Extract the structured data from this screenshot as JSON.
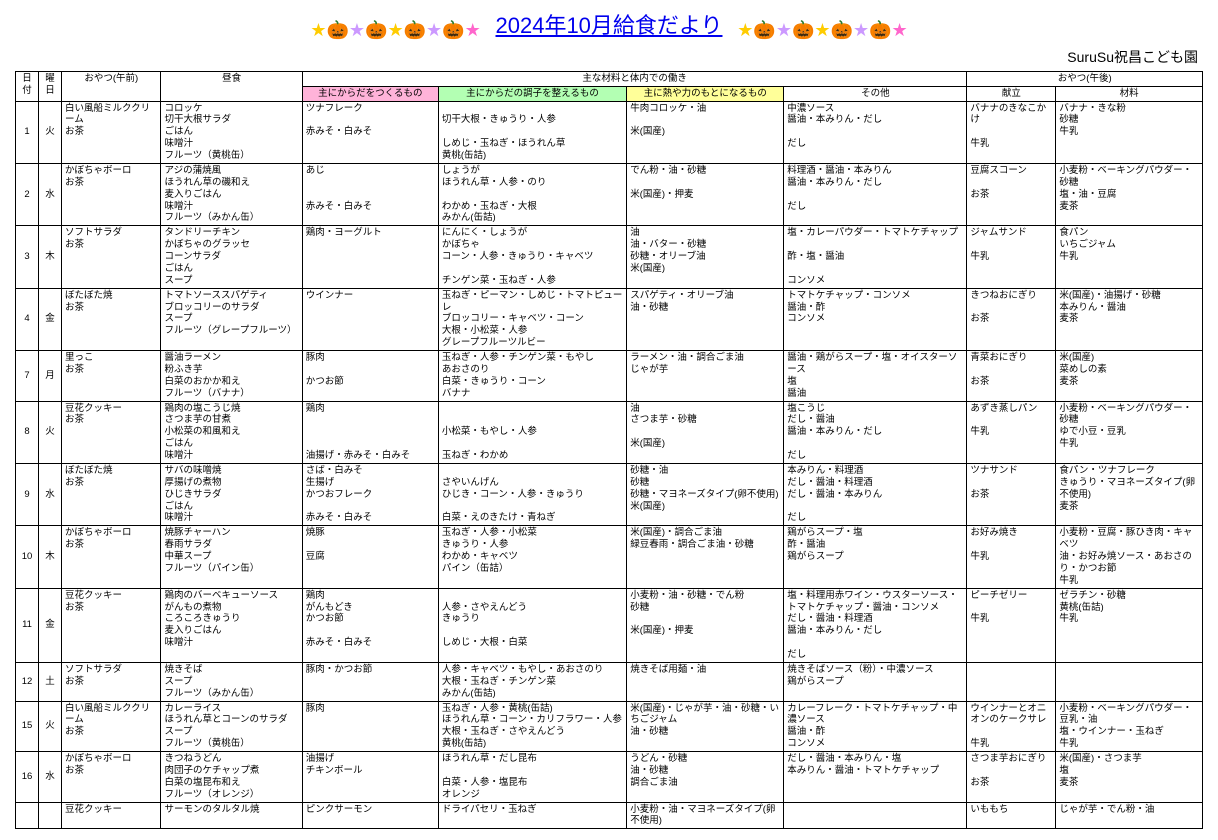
{
  "title": "2024年10月給食だより",
  "school_name": "SuruSu祝昌こども園",
  "icons": {
    "left": [
      {
        "cls": "star",
        "ch": "★"
      },
      {
        "cls": "pump-t",
        "ch": "🎃"
      },
      {
        "cls": "star-lav",
        "ch": "★"
      },
      {
        "cls": "pump-p",
        "ch": "🎃"
      },
      {
        "cls": "star",
        "ch": "★"
      },
      {
        "cls": "pump-o",
        "ch": "🎃"
      },
      {
        "cls": "star-lav",
        "ch": "★"
      },
      {
        "cls": "pump-o",
        "ch": "🎃"
      },
      {
        "cls": "star-pink",
        "ch": "★"
      }
    ],
    "right": [
      {
        "cls": "star",
        "ch": "★"
      },
      {
        "cls": "pump-g",
        "ch": "🎃"
      },
      {
        "cls": "star-lav",
        "ch": "★"
      },
      {
        "cls": "pump-p",
        "ch": "🎃"
      },
      {
        "cls": "star",
        "ch": "★"
      },
      {
        "cls": "pump-o",
        "ch": "🎃"
      },
      {
        "cls": "star-lav",
        "ch": "★"
      },
      {
        "cls": "pump-t",
        "ch": "🎃"
      },
      {
        "cls": "star-pink",
        "ch": "★"
      }
    ]
  },
  "headers": {
    "date": "日付",
    "day": "曜日",
    "snack_am": "おやつ(午前)",
    "lunch": "昼食",
    "main_group": "主な材料と体内での働き",
    "body": "主にからだをつくるもの",
    "condition": "主にからだの調子を整えるもの",
    "heat": "主に熱や力のもとになるもの",
    "other": "その他",
    "snack_pm_group": "おやつ(午後)",
    "menu": "献立",
    "material": "材料"
  },
  "rows": [
    {
      "date": "1",
      "day": "火",
      "snack_am": "白い風船ミルククリーム\nお茶",
      "lunch": "コロッケ\n切干大根サラダ\nごはん\n味噌汁\nフルーツ（黄桃缶）",
      "body": "ツナフレーク\n\n赤みそ・白みそ",
      "cond": "\n切干大根・きゅうり・人参\n\nしめじ・玉ねぎ・ほうれん草\n黄桃(缶詰)",
      "heat": "牛肉コロッケ・油\n\n米(国産)",
      "other": "中濃ソース\n醤油・本みりん・だし\n\nだし",
      "menu": "バナナのきなこかけ\n\n牛乳",
      "mat": "バナナ・きな粉\n砂糖\n牛乳"
    },
    {
      "date": "2",
      "day": "水",
      "snack_am": "かぼちゃボーロ\nお茶",
      "lunch": "アジの蒲焼風\nほうれん草の磯和え\n麦入りごはん\n味噌汁\nフルーツ（みかん缶）",
      "body": "あじ\n\n\n赤みそ・白みそ",
      "cond": "しょうが\nほうれん草・人参・のり\n\nわかめ・玉ねぎ・大根\nみかん(缶詰)",
      "heat": "でん粉・油・砂糖\n\n米(国産)・押麦",
      "other": "料理酒・醤油・本みりん\n醤油・本みりん・だし\n\nだし",
      "menu": "豆腐スコーン\n\nお茶",
      "mat": "小麦粉・ベーキングパウダー・砂糖\n塩・油・豆腐\n麦茶"
    },
    {
      "date": "3",
      "day": "木",
      "snack_am": "ソフトサラダ\nお茶",
      "lunch": "タンドリーチキン\nかぼちゃのグラッセ\nコーンサラダ\nごはん\nスープ",
      "body": "鶏肉・ヨーグルト",
      "cond": "にんにく・しょうが\nかぼちゃ\nコーン・人参・きゅうり・キャベツ\n\nチンゲン菜・玉ねぎ・人参",
      "heat": "油\n油・バター・砂糖\n砂糖・オリーブ油\n米(国産)",
      "other": "塩・カレーパウダー・トマトケチャップ\n\n酢・塩・醤油\n\nコンソメ",
      "menu": "ジャムサンド\n\n牛乳",
      "mat": "食パン\nいちごジャム\n牛乳"
    },
    {
      "date": "4",
      "day": "金",
      "snack_am": "ぼたぼた焼\nお茶",
      "lunch": "トマトソーススパゲティ\nブロッコリーのサラダ\nスープ\nフルーツ（グレープフルーツ）",
      "body": "ウインナー",
      "cond": "玉ねぎ・ピーマン・しめじ・トマトピューレ\nブロッコリー・キャベツ・コーン\n大根・小松菜・人参\nグレープフルーツルビー",
      "heat": "スパゲティ・オリーブ油\n油・砂糖",
      "other": "トマトケチャップ・コンソメ\n醤油・酢\nコンソメ",
      "menu": "きつねおにぎり\n\nお茶",
      "mat": "米(国産)・油揚げ・砂糖\n本みりん・醤油\n麦茶"
    },
    {
      "date": "7",
      "day": "月",
      "snack_am": "里っこ\nお茶",
      "lunch": "醤油ラーメン\n粉ふき芋\n白菜のおかか和え\nフルーツ（バナナ）",
      "body": "豚肉\n\nかつお節",
      "cond": "玉ねぎ・人参・チンゲン菜・もやし\nあおさのり\n白菜・きゅうり・コーン\nバナナ",
      "heat": "ラーメン・油・調合ごま油\nじゃが芋",
      "other": "醤油・鶏がらスープ・塩・オイスターソース\n塩\n醤油",
      "menu": "青菜おにぎり\n\nお茶",
      "mat": "米(国産)\n菜めしの素\n麦茶"
    },
    {
      "date": "8",
      "day": "火",
      "snack_am": "豆花クッキー\nお茶",
      "lunch": "鶏肉の塩こうじ焼\nさつま芋の甘煮\n小松菜の和風和え\nごはん\n味噌汁",
      "body": "鶏肉\n\n\n\n油揚げ・赤みそ・白みそ",
      "cond": "\n\n小松菜・もやし・人参\n\n玉ねぎ・わかめ",
      "heat": "油\nさつま芋・砂糖\n\n米(国産)",
      "other": "塩こうじ\nだし・醤油\n醤油・本みりん・だし\n\nだし",
      "menu": "あずき蒸しパン\n\n牛乳",
      "mat": "小麦粉・ベーキングパウダー・砂糖\nゆで小豆・豆乳\n牛乳"
    },
    {
      "date": "9",
      "day": "水",
      "snack_am": "ぼたぼた焼\nお茶",
      "lunch": "サバの味噌焼\n厚揚げの煮物\nひじきサラダ\nごはん\n味噌汁",
      "body": "さば・白みそ\n生揚げ\nかつおフレーク\n\n赤みそ・白みそ",
      "cond": "\nさやいんげん\nひじき・コーン・人参・きゅうり\n\n白菜・えのきたけ・青ねぎ",
      "heat": "砂糖・油\n砂糖\n砂糖・マヨネーズタイプ(卵不使用)\n米(国産)",
      "other": "本みりん・料理酒\nだし・醤油・料理酒\nだし・醤油・本みりん\n\nだし",
      "menu": "ツナサンド\n\nお茶",
      "mat": "食パン・ツナフレーク\nきゅうり・マヨネーズタイプ(卵不使用)\n麦茶"
    },
    {
      "date": "10",
      "day": "木",
      "snack_am": "かぼちゃボーロ\nお茶",
      "lunch": "焼豚チャーハン\n春雨サラダ\n中華スープ\nフルーツ（パイン缶）",
      "body": "焼豚\n\n豆腐",
      "cond": "玉ねぎ・人参・小松菜\nきゅうり・人参\nわかめ・キャベツ\nパイン（缶詰）",
      "heat": "米(国産)・調合ごま油\n緑豆春雨・調合ごま油・砂糖",
      "other": "鶏がらスープ・塩\n酢・醤油\n鶏がらスープ",
      "menu": "お好み焼き\n\n牛乳",
      "mat": "小麦粉・豆腐・豚ひき肉・キャベツ\n油・お好み焼ソース・あおさのり・かつお節\n牛乳"
    },
    {
      "date": "11",
      "day": "金",
      "snack_am": "豆花クッキー\nお茶",
      "lunch": "鶏肉のバーベキューソース\nがんもの煮物\nころころきゅうり\n麦入りごはん\n味噌汁",
      "body": "鶏肉\nがんもどき\nかつお節\n\n赤みそ・白みそ",
      "cond": "\n人参・さやえんどう\nきゅうり\n\nしめじ・大根・白菜",
      "heat": "小麦粉・油・砂糖・でん粉\n砂糖\n\n米(国産)・押麦",
      "other": "塩・料理用赤ワイン・ウスターソース・トマトケチャップ・醤油・コンソメ\nだし・醤油・料理酒\n醤油・本みりん・だし\n\nだし",
      "menu": "ピーチゼリー\n\n牛乳",
      "mat": "ゼラチン・砂糖\n黄桃(缶詰)\n牛乳"
    },
    {
      "date": "12",
      "day": "土",
      "snack_am": "ソフトサラダ\nお茶",
      "lunch": "焼きそば\nスープ\nフルーツ（みかん缶）",
      "body": "豚肉・かつお節",
      "cond": "人参・キャベツ・もやし・あおさのり\n大根・玉ねぎ・チンゲン菜\nみかん(缶詰)",
      "heat": "焼きそば用麺・油",
      "other": "焼きそばソース（粉）・中濃ソース\n鶏がらスープ",
      "menu": "",
      "mat": ""
    },
    {
      "date": "15",
      "day": "火",
      "snack_am": "白い風船ミルククリーム\nお茶",
      "lunch": "カレーライス\nほうれん草とコーンのサラダ\nスープ\nフルーツ（黄桃缶）",
      "body": "豚肉",
      "cond": "玉ねぎ・人参・黄桃(缶詰)\nほうれん草・コーン・カリフラワー・人参\n大根・玉ねぎ・さやえんどう\n黄桃(缶詰)",
      "heat": "米(国産)・じゃが芋・油・砂糖・いちごジャム\n油・砂糖",
      "other": "カレーフレーク・トマトケチャップ・中濃ソース\n醤油・酢\nコンソメ",
      "menu": "ウインナーとオニオンのケークサレ\n\n牛乳",
      "mat": "小麦粉・ベーキングパウダー・豆乳・油\n塩・ウインナー・玉ねぎ\n牛乳"
    },
    {
      "date": "16",
      "day": "水",
      "snack_am": "かぼちゃボーロ\nお茶",
      "lunch": "きつねうどん\n肉団子のケチャップ煮\n白菜の塩昆布和え\nフルーツ（オレンジ）",
      "body": "油揚げ\nチキンボール",
      "cond": "ほうれん草・だし昆布\n\n白菜・人参・塩昆布\nオレンジ",
      "heat": "うどん・砂糖\n油・砂糖\n調合ごま油",
      "other": "だし・醤油・本みりん・塩\n本みりん・醤油・トマトケチャップ",
      "menu": "さつま芋おにぎり\n\nお茶",
      "mat": "米(国産)・さつま芋\n塩\n麦茶"
    },
    {
      "date": "",
      "day": "",
      "snack_am": "豆花クッキー",
      "lunch": "サーモンのタルタル焼",
      "body": "ピンクサーモン",
      "cond": "ドライパセリ・玉ねぎ",
      "heat": "小麦粉・油・マヨネーズタイプ(卵不使用)",
      "other": "",
      "menu": "いももち",
      "mat": "じゃが芋・でん粉・油"
    }
  ]
}
